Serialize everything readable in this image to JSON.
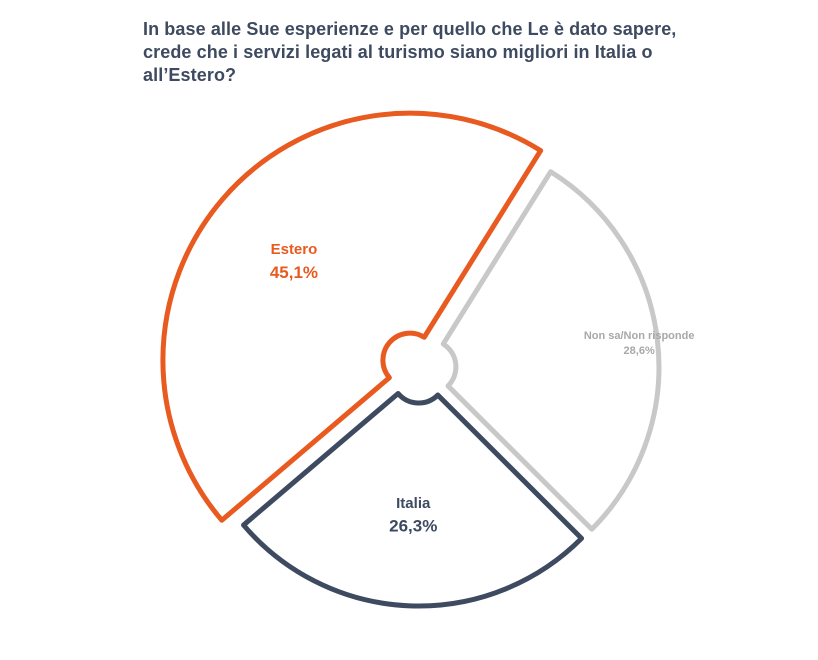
{
  "chart_data": {
    "type": "pie",
    "title": "In base alle Sue esperienze e per quello che Le è dato sapere, crede che i servizi legati al turismo siano migliori in Italia o all’Estero?",
    "categories": [
      "Estero",
      "Non sa/Non risponde",
      "Italia"
    ],
    "values": [
      45.1,
      28.6,
      26.3
    ],
    "value_labels": [
      "45,1%",
      "28,6%",
      "26,3%"
    ],
    "colors": [
      "#e85a1f",
      "#c8c8c8",
      "#3e4a5f"
    ],
    "label_colors": [
      "#e85a1f",
      "#a8a8a8",
      "#3e4a5f"
    ],
    "legend": "none",
    "style": "exploded-outline"
  }
}
